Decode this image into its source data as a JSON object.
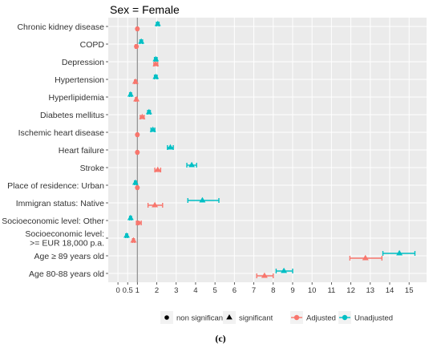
{
  "chart_data": {
    "type": "forest",
    "title": "Sex = Female",
    "caption": "(c)",
    "xlim": [
      -0.5,
      15.9
    ],
    "x_ticks": [
      0,
      0.5,
      1,
      2,
      3,
      4,
      5,
      6,
      7,
      8,
      9,
      10,
      11,
      12,
      13,
      14,
      15
    ],
    "x_tick_labels": [
      "0",
      "0.5",
      "1",
      "2",
      "3",
      "4",
      "5",
      "6",
      "7",
      "8",
      "9",
      "10",
      "11",
      "12",
      "13",
      "14",
      "15"
    ],
    "reference_line": 1,
    "grid": true,
    "legend_position": "bottom",
    "categories": [
      {
        "label": "Chronic kidney disease",
        "lines": [
          "Chronic kidney disease"
        ]
      },
      {
        "label": "COPD",
        "lines": [
          "COPD"
        ]
      },
      {
        "label": "Depression",
        "lines": [
          "Depression"
        ]
      },
      {
        "label": "Hypertension",
        "lines": [
          "Hypertension"
        ]
      },
      {
        "label": "Hyperlipidemia",
        "lines": [
          "Hyperlipidemia"
        ]
      },
      {
        "label": "Diabetes mellitus",
        "lines": [
          "Diabetes mellitus"
        ]
      },
      {
        "label": "Ischemic heart disease",
        "lines": [
          "Ischemic heart disease"
        ]
      },
      {
        "label": "Heart failure",
        "lines": [
          "Heart failure"
        ]
      },
      {
        "label": "Stroke",
        "lines": [
          "Stroke"
        ]
      },
      {
        "label": "Place of residence: Urban",
        "lines": [
          "Place of residence: Urban"
        ]
      },
      {
        "label": "Immigran status: Native",
        "lines": [
          "Immigran status: Native"
        ]
      },
      {
        "label": "Socioeconomic level: Other",
        "lines": [
          "Socioeconomic level: Other"
        ]
      },
      {
        "label": "Socioeconomic level: >= EUR 18,000 p.a.",
        "lines": [
          "Socioeconomic level:",
          ">= EUR 18,000 p.a."
        ]
      },
      {
        "label": "Age ≥ 89 years old",
        "lines": [
          "Age ≥ 89 years old"
        ]
      },
      {
        "label": "Age 80-88 years old",
        "lines": [
          "Age 80-88 years old"
        ]
      }
    ],
    "series": [
      {
        "name": "Adjusted",
        "color": "#F8766D",
        "points": [
          {
            "y": 0,
            "x": 1.0,
            "lo": 0.96,
            "hi": 1.04,
            "shape": "circle"
          },
          {
            "y": 1,
            "x": 0.95,
            "lo": 0.9,
            "hi": 1.0,
            "shape": "circle"
          },
          {
            "y": 2,
            "x": 1.95,
            "lo": 1.85,
            "hi": 2.05,
            "shape": "triangle"
          },
          {
            "y": 3,
            "x": 0.9,
            "lo": 0.85,
            "hi": 0.95,
            "shape": "triangle"
          },
          {
            "y": 4,
            "x": 0.95,
            "lo": 0.9,
            "hi": 1.0,
            "shape": "triangle"
          },
          {
            "y": 5,
            "x": 1.25,
            "lo": 1.15,
            "hi": 1.35,
            "shape": "triangle"
          },
          {
            "y": 6,
            "x": 1.0,
            "lo": 0.96,
            "hi": 1.04,
            "shape": "circle"
          },
          {
            "y": 7,
            "x": 1.0,
            "lo": 0.96,
            "hi": 1.04,
            "shape": "circle"
          },
          {
            "y": 8,
            "x": 2.05,
            "lo": 1.9,
            "hi": 2.2,
            "shape": "triangle"
          },
          {
            "y": 9,
            "x": 1.0,
            "lo": 0.96,
            "hi": 1.04,
            "shape": "circle"
          },
          {
            "y": 10,
            "x": 1.9,
            "lo": 1.55,
            "hi": 2.3,
            "shape": "triangle"
          },
          {
            "y": 11,
            "x": 1.05,
            "lo": 0.95,
            "hi": 1.2,
            "shape": "circle"
          },
          {
            "y": 12,
            "x": 0.8,
            "lo": 0.75,
            "hi": 0.85,
            "shape": "triangle"
          },
          {
            "y": 13,
            "x": 12.75,
            "lo": 11.95,
            "hi": 13.6,
            "shape": "triangle"
          },
          {
            "y": 14,
            "x": 7.55,
            "lo": 7.15,
            "hi": 8.0,
            "shape": "triangle"
          }
        ]
      },
      {
        "name": "Unadjusted",
        "color": "#00BFC4",
        "points": [
          {
            "y": 0,
            "x": 2.05,
            "lo": 1.98,
            "hi": 2.12,
            "shape": "triangle"
          },
          {
            "y": 1,
            "x": 1.2,
            "lo": 1.13,
            "hi": 1.27,
            "shape": "triangle"
          },
          {
            "y": 2,
            "x": 1.95,
            "lo": 1.88,
            "hi": 2.02,
            "shape": "triangle"
          },
          {
            "y": 3,
            "x": 1.95,
            "lo": 1.88,
            "hi": 2.02,
            "shape": "triangle"
          },
          {
            "y": 4,
            "x": 0.65,
            "lo": 0.6,
            "hi": 0.7,
            "shape": "triangle"
          },
          {
            "y": 5,
            "x": 1.6,
            "lo": 1.53,
            "hi": 1.67,
            "shape": "triangle"
          },
          {
            "y": 6,
            "x": 1.8,
            "lo": 1.7,
            "hi": 1.9,
            "shape": "triangle"
          },
          {
            "y": 7,
            "x": 2.7,
            "lo": 2.55,
            "hi": 2.85,
            "shape": "triangle"
          },
          {
            "y": 8,
            "x": 3.8,
            "lo": 3.55,
            "hi": 4.05,
            "shape": "triangle"
          },
          {
            "y": 9,
            "x": 0.9,
            "lo": 0.85,
            "hi": 0.95,
            "shape": "triangle"
          },
          {
            "y": 10,
            "x": 4.35,
            "lo": 3.6,
            "hi": 5.2,
            "shape": "triangle"
          },
          {
            "y": 11,
            "x": 0.65,
            "lo": 0.6,
            "hi": 0.7,
            "shape": "triangle"
          },
          {
            "y": 12,
            "x": 0.45,
            "lo": 0.4,
            "hi": 0.5,
            "shape": "triangle"
          },
          {
            "y": 13,
            "x": 14.5,
            "lo": 13.65,
            "hi": 15.3,
            "shape": "triangle"
          },
          {
            "y": 14,
            "x": 8.55,
            "lo": 8.15,
            "hi": 9.0,
            "shape": "triangle"
          }
        ]
      }
    ],
    "legend": {
      "shape_items": [
        {
          "label": "non significant",
          "shape": "circle"
        },
        {
          "label": "significant",
          "shape": "triangle"
        }
      ],
      "color_items": [
        {
          "label": "Adjusted",
          "color": "#F8766D"
        },
        {
          "label": "Unadjusted",
          "color": "#00BFC4"
        }
      ]
    }
  }
}
